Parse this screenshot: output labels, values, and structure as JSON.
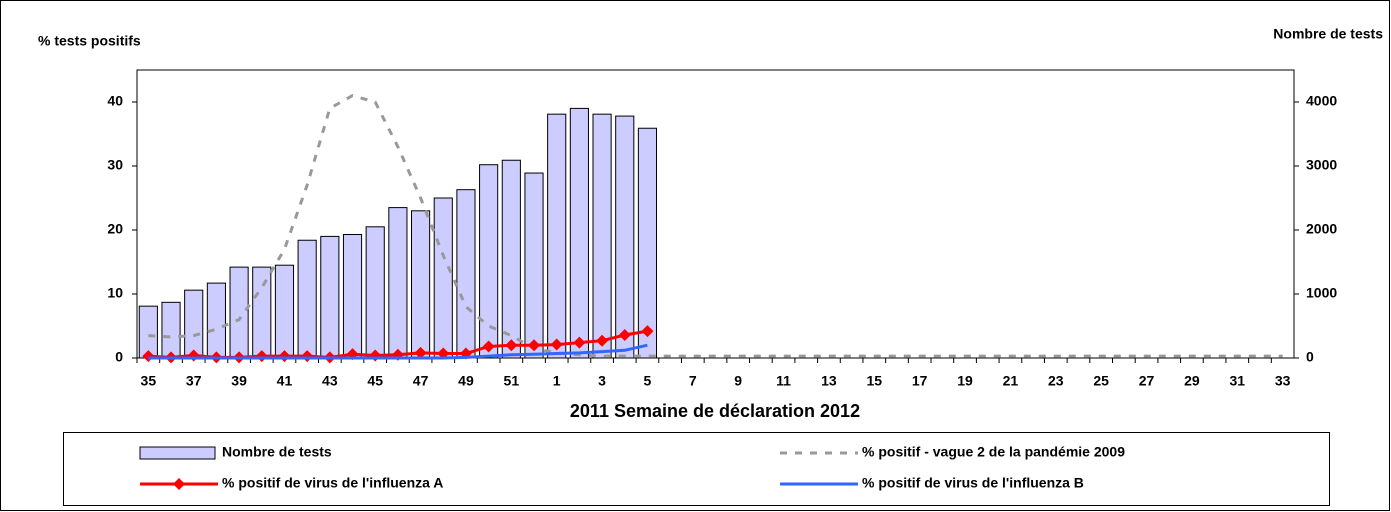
{
  "chart_data": {
    "type": "combo",
    "y_label": "% tests positifs",
    "y2_label": "Nombre de tests",
    "x_label": "2011  Semaine de déclaration   2012",
    "categories": [
      "35",
      null,
      "37",
      null,
      "39",
      null,
      "41",
      null,
      "43",
      null,
      "45",
      null,
      "47",
      null,
      "49",
      null,
      "51",
      null,
      "1",
      null,
      "3",
      null,
      "5",
      null,
      "7",
      null,
      "9",
      null,
      "11",
      null,
      "13",
      null,
      "15",
      null,
      "17",
      null,
      "19",
      null,
      "21",
      null,
      "23",
      null,
      "25",
      null,
      "27",
      null,
      "29",
      null,
      "31",
      null,
      "33"
    ],
    "ylim": [
      0,
      45
    ],
    "yticks": [
      0,
      10,
      20,
      30,
      40
    ],
    "y2lim": [
      0,
      4500
    ],
    "y2ticks": [
      0,
      1000,
      2000,
      3000,
      4000
    ],
    "series": [
      {
        "name": "Nombre de tests",
        "kind": "bar",
        "axis": "y2",
        "color": "#ccccff",
        "values": [
          810,
          870,
          1060,
          1170,
          1420,
          1420,
          1450,
          1840,
          1900,
          1930,
          2050,
          2350,
          2300,
          2500,
          2630,
          3020,
          3090,
          2890,
          3810,
          3900,
          3810,
          3780,
          3590,
          null,
          null,
          null,
          null,
          null,
          null,
          null,
          null,
          null,
          null,
          null,
          null,
          null,
          null,
          null,
          null,
          null,
          null,
          null,
          null,
          null,
          null,
          null,
          null,
          null,
          null,
          null,
          null
        ]
      },
      {
        "name": "% positif - vague 2 de la pandémie 2009",
        "kind": "line",
        "axis": "y",
        "color": "#999999",
        "dash": true,
        "values": [
          3.5,
          3.3,
          3.5,
          4.5,
          6,
          11,
          17,
          27,
          39,
          41,
          40,
          33,
          25,
          16,
          8,
          5,
          3.5,
          1.5,
          0.8,
          0.5,
          0.3,
          0.3,
          0.3,
          0.3,
          0.3,
          0.3,
          0.3,
          0.3,
          0.3,
          0.3,
          0.3,
          0.3,
          0.3,
          0.3,
          0.3,
          0.3,
          0.3,
          0.3,
          0.3,
          0.3,
          0.3,
          0.3,
          0.3,
          0.3,
          0.3,
          0.3,
          0.3,
          0.3,
          0.3,
          0.3,
          0.3
        ]
      },
      {
        "name": "% positif de virus de l'influenza A",
        "kind": "line",
        "axis": "y",
        "color": "#ff0000",
        "marker": "diamond",
        "values": [
          0.3,
          0.1,
          0.4,
          0.1,
          0.1,
          0.3,
          0.3,
          0.3,
          0.1,
          0.6,
          0.4,
          0.5,
          0.8,
          0.7,
          0.7,
          1.8,
          2.0,
          2.0,
          2.1,
          2.4,
          2.7,
          3.6,
          4.2,
          null,
          null,
          null,
          null,
          null,
          null,
          null,
          null,
          null,
          null,
          null,
          null,
          null,
          null,
          null,
          null,
          null,
          null,
          null,
          null,
          null,
          null,
          null,
          null,
          null,
          null,
          null,
          null
        ]
      },
      {
        "name": "% positif de virus de l'influenza B",
        "kind": "line",
        "axis": "y",
        "color": "#3366ff",
        "values": [
          0,
          0,
          0,
          0,
          0,
          0,
          0,
          0,
          0,
          0,
          0,
          0,
          0,
          0,
          0.1,
          0.3,
          0.5,
          0.6,
          0.7,
          0.8,
          1.0,
          1.2,
          2.0,
          null,
          null,
          null,
          null,
          null,
          null,
          null,
          null,
          null,
          null,
          null,
          null,
          null,
          null,
          null,
          null,
          null,
          null,
          null,
          null,
          null,
          null,
          null,
          null,
          null,
          null,
          null,
          null
        ]
      }
    ]
  }
}
